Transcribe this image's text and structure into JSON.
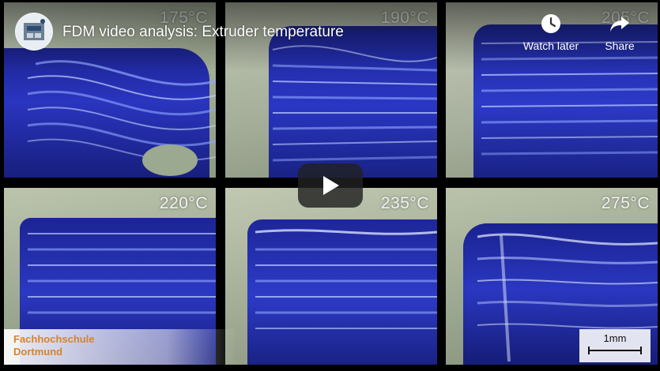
{
  "video": {
    "title": "FDM video analysis: Extruder temperature",
    "channel_avatar": "channel-logo"
  },
  "actions": {
    "watch_later_label": "Watch later",
    "watch_later_icon": "clock-icon",
    "share_label": "Share",
    "share_icon": "share-arrow-icon"
  },
  "play_button": {
    "icon": "play-icon"
  },
  "panels": [
    {
      "temp": "175°C"
    },
    {
      "temp": "190°C"
    },
    {
      "temp": "205°C"
    },
    {
      "temp": "220°C"
    },
    {
      "temp": "235°C"
    },
    {
      "temp": "275°C"
    }
  ],
  "branding": {
    "line1": "Fachhochschule",
    "line2": "Dortmund"
  },
  "scale_bar": {
    "label": "1mm"
  },
  "colors": {
    "filament_blue": "#1f2d9e",
    "background_green": "#aab79a",
    "brand_orange": "#d9822b"
  }
}
